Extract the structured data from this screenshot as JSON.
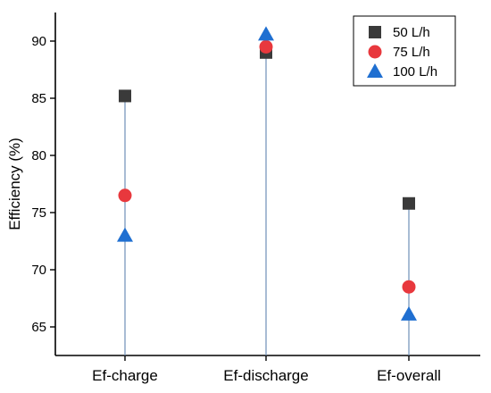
{
  "chart_data": {
    "type": "scatter",
    "ylabel": "Efficiency (%)",
    "xlabel": "",
    "categories": [
      "Ef-charge",
      "Ef-discharge",
      "Ef-overall"
    ],
    "ylim": [
      62.5,
      92.5
    ],
    "yticks": [
      65,
      70,
      75,
      80,
      85,
      90
    ],
    "grid": false,
    "legend_position": "top-right",
    "series": [
      {
        "name": "50 L/h",
        "marker": "square",
        "color": "#3a3a3a",
        "values": [
          85.2,
          89.0,
          75.8
        ]
      },
      {
        "name": "75 L/h",
        "marker": "circle",
        "color": "#e8383d",
        "values": [
          76.5,
          89.5,
          68.5
        ]
      },
      {
        "name": "100 L/h",
        "marker": "triangle",
        "color": "#1f6fd1",
        "values": [
          73.0,
          90.6,
          66.1
        ]
      }
    ],
    "stem_color": "#6f8fb8"
  }
}
